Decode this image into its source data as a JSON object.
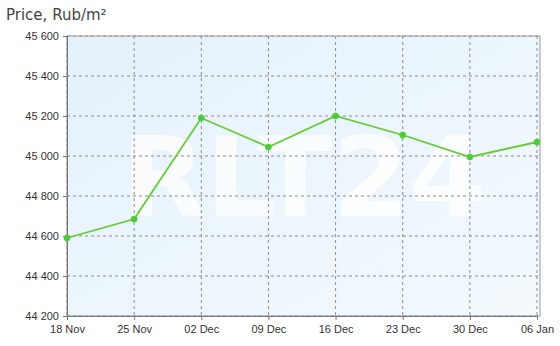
{
  "chart_data": {
    "type": "line",
    "title": "Price, Rub/m²",
    "categories": [
      "18 Nov",
      "25 Nov",
      "02 Dec",
      "09 Dec",
      "16 Dec",
      "23 Dec",
      "30 Dec",
      "06 Jan"
    ],
    "values": [
      44590,
      44685,
      45190,
      45045,
      45200,
      45105,
      44995,
      45070
    ],
    "color": "#66cc33",
    "marker": "circle",
    "ylim": [
      44200,
      45600
    ],
    "yticks": [
      {
        "value": 44200,
        "label": "44 200"
      },
      {
        "value": 44400,
        "label": "44 400"
      },
      {
        "value": 44600,
        "label": "44 600"
      },
      {
        "value": 44800,
        "label": "44 800"
      },
      {
        "value": 45000,
        "label": "45 000"
      },
      {
        "value": 45200,
        "label": "45 200"
      },
      {
        "value": 45400,
        "label": "45 400"
      },
      {
        "value": 45600,
        "label": "45 600"
      }
    ],
    "grid": true,
    "annotations": [
      "RLT24"
    ]
  }
}
